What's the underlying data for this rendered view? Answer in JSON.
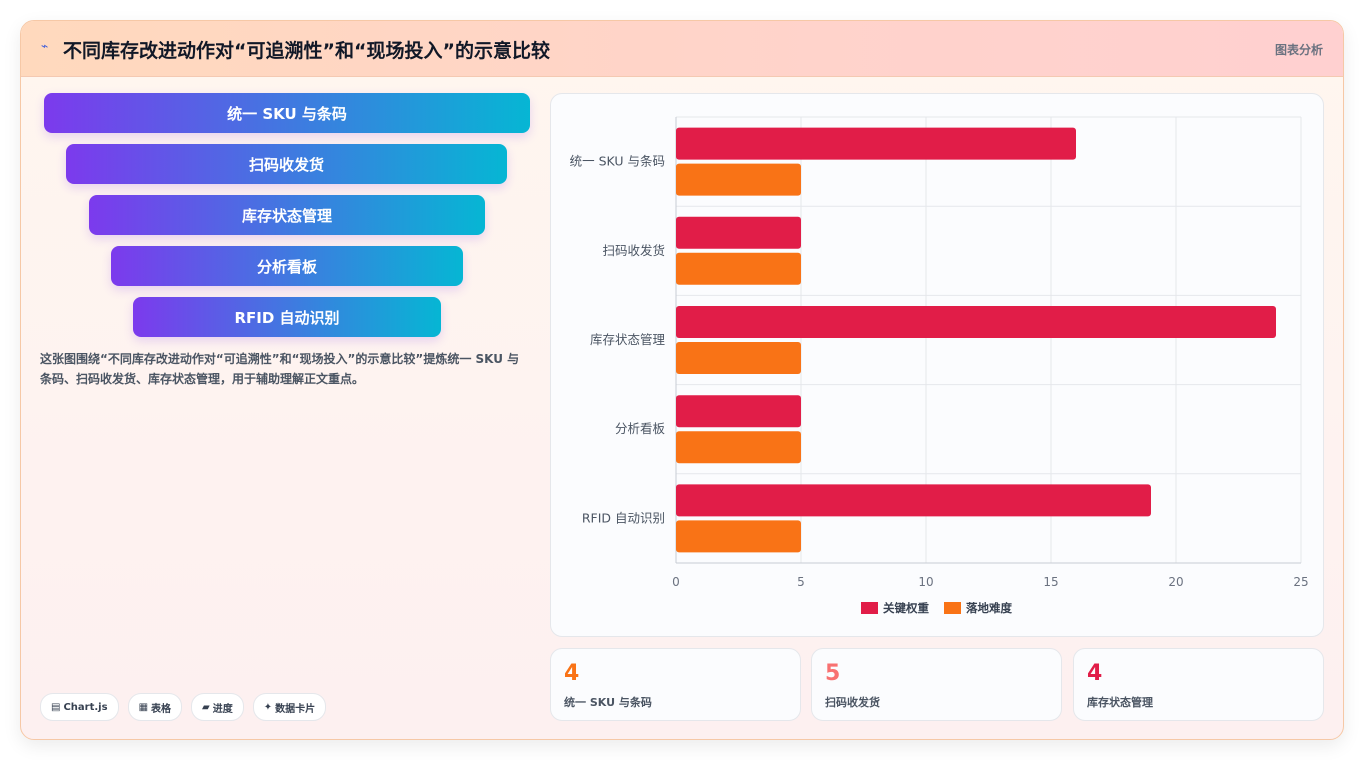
{
  "header": {
    "icon": "wave-icon",
    "title": "不同库存改进动作对“可追溯性”和“现场投入”的示意比较",
    "link": "图表分析"
  },
  "funnel": [
    "统一 SKU 与条码",
    "扫码收发货",
    "库存状态管理",
    "分析看板",
    "RFID 自动识别"
  ],
  "description": "这张图围绕“不同库存改进动作对“可追溯性”和“现场投入”的示意比较”提炼统一 SKU 与条码、扫码收发货、库存状态管理，用于辅助理解正文重点。",
  "chips": [
    {
      "icon": "chart-icon",
      "glyph": "▤",
      "label": "Chart.js"
    },
    {
      "icon": "table-icon",
      "glyph": "▦",
      "label": "表格"
    },
    {
      "icon": "progress-icon",
      "glyph": "▰",
      "label": "进度"
    },
    {
      "icon": "sparkle-icon",
      "glyph": "✦",
      "label": "数据卡片"
    }
  ],
  "stats": [
    {
      "value": "4",
      "label": "统一 SKU 与条码",
      "color": "#f97316"
    },
    {
      "value": "5",
      "label": "扫码收发货",
      "color": "#f87171"
    },
    {
      "value": "4",
      "label": "库存状态管理",
      "color": "#e11d48"
    }
  ],
  "chart_data": {
    "type": "bar",
    "orientation": "horizontal",
    "categories": [
      "统一 SKU 与条码",
      "扫码收发货",
      "库存状态管理",
      "分析看板",
      "RFID 自动识别"
    ],
    "series": [
      {
        "name": "关键权重",
        "values": [
          16,
          5,
          24,
          5,
          19
        ],
        "color": "#e11d48"
      },
      {
        "name": "落地难度",
        "values": [
          5,
          5,
          5,
          5,
          5
        ],
        "color": "#f97316"
      }
    ],
    "xlim": [
      0,
      25
    ],
    "xticks": [
      0,
      5,
      10,
      15,
      20,
      25
    ],
    "grid": true,
    "legend": "bottom"
  }
}
